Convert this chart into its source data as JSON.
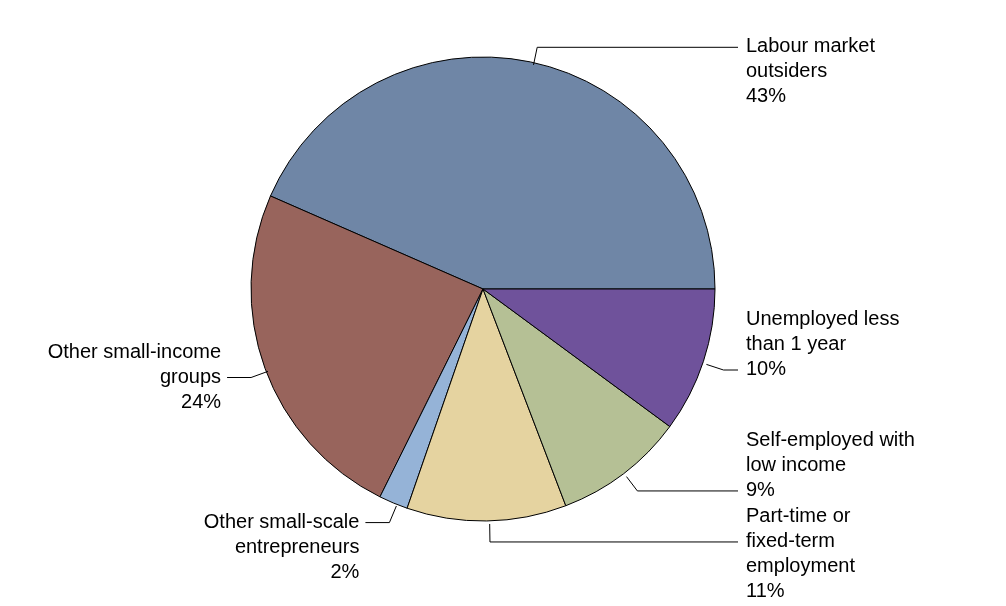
{
  "chart_data": {
    "type": "pie",
    "categories": [
      "Labour market outsiders",
      "Other small-income groups",
      "Other small-scale entrepreneurs",
      "Part-time or fixed-term employment",
      "Self-employed with low income",
      "Unemployed less than 1 year"
    ],
    "values": [
      43,
      24,
      2,
      11,
      9,
      10
    ],
    "value_labels": [
      "43%",
      "24%",
      "2%",
      "11%",
      "9%",
      "10%"
    ],
    "colors": [
      "#6f86a6",
      "#98645c",
      "#95b3d7",
      "#e5d3a0",
      "#b5c095",
      "#6f529b"
    ],
    "legend": false
  }
}
